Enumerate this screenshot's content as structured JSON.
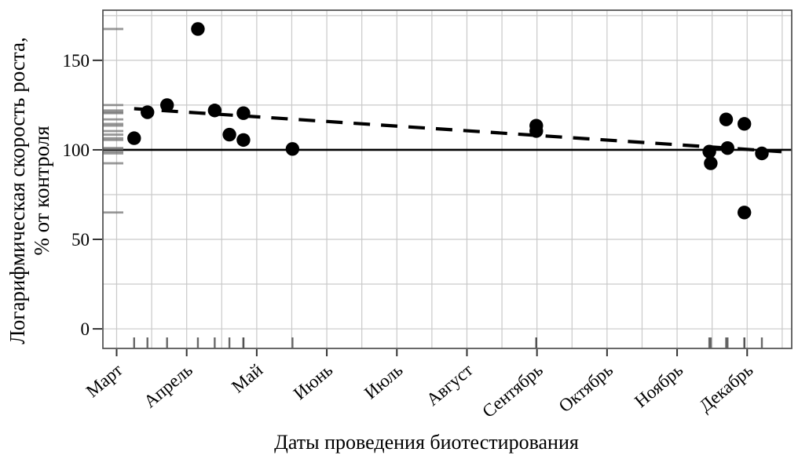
{
  "figure": {
    "background": "#ffffff"
  },
  "chart_data": {
    "type": "scatter",
    "title": "",
    "xlabel": "Даты проведения биотестирования",
    "ylabel_line1": "Логарифмическая скорость роста,",
    "ylabel_line2": "% от контроля",
    "x_tick_labels": [
      "Март",
      "Апрель",
      "Май",
      "Июнь",
      "Июль",
      "Август",
      "Сентябрь",
      "Октябрь",
      "Ноябрь",
      "Декабрь"
    ],
    "x_tick_positions": [
      3,
      4,
      5,
      6,
      7,
      8,
      9,
      10,
      11,
      12
    ],
    "y_tick_values": [
      0,
      50,
      100,
      150
    ],
    "xlim": [
      2.804,
      12.636
    ],
    "ylim": [
      -10.93,
      178
    ],
    "x_grid_step": 0.5,
    "y_grid_step": 25,
    "grid_color": "#c9c9c9",
    "border_color": "#4d4d4d",
    "tick_color": "#333333",
    "point_color": "#000000",
    "legend": "none",
    "points": [
      [
        3.25,
        106.5
      ],
      [
        3.44,
        121
      ],
      [
        3.72,
        125
      ],
      [
        4.16,
        167.5
      ],
      [
        4.4,
        122
      ],
      [
        4.61,
        108.5
      ],
      [
        4.81,
        120.5
      ],
      [
        4.81,
        105.5
      ],
      [
        5.51,
        100.5
      ],
      [
        8.99,
        113.5
      ],
      [
        8.99,
        110.5
      ],
      [
        11.46,
        99
      ],
      [
        11.48,
        92.5
      ],
      [
        11.7,
        117
      ],
      [
        11.72,
        101
      ],
      [
        11.96,
        114.5
      ],
      [
        11.96,
        65
      ],
      [
        12.21,
        98
      ]
    ],
    "control_line": {
      "y": 100,
      "style": "solid",
      "color": "#000000"
    },
    "trend_line": {
      "x1": 3.25,
      "y1": 123,
      "x2": 12.64,
      "y2": 98.6,
      "style": "dashed",
      "color": "#000000"
    },
    "rug_marks": {
      "x_color": "#4f4f4f",
      "y_color": "#757575"
    }
  }
}
